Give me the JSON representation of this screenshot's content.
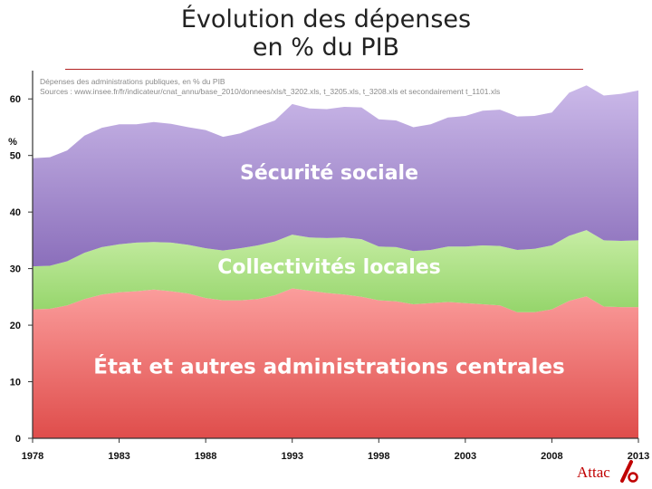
{
  "page": {
    "title_line1": "Évolution des dépenses",
    "title_line2": "en % du PIB",
    "logo_text": "Attac",
    "colors": {
      "title_rule": "#b22222",
      "logo": "#c00000"
    }
  },
  "chart_data": {
    "type": "area",
    "stacking": "cumulative",
    "note_line1": "Dépenses des administrations publiques, en % du PIB",
    "note_line2": "Sources : www.insee.fr/fr/indicateur/cnat_annu/base_2010/donnees/xls/t_3202.xls, t_3205.xls, t_3208.xls et secondairement t_1101.xls",
    "ylabel": "%",
    "ylim": [
      0,
      65
    ],
    "xlim": [
      1978,
      2013
    ],
    "x_ticks": [
      1978,
      1983,
      1988,
      1993,
      1998,
      2003,
      2008,
      2013
    ],
    "y_ticks": [
      0,
      10,
      20,
      30,
      40,
      50,
      60
    ],
    "x": [
      1978,
      1979,
      1980,
      1981,
      1982,
      1983,
      1984,
      1985,
      1986,
      1987,
      1988,
      1989,
      1990,
      1991,
      1992,
      1993,
      1994,
      1995,
      1996,
      1997,
      1998,
      1999,
      2000,
      2001,
      2002,
      2003,
      2004,
      2005,
      2006,
      2007,
      2008,
      2009,
      2010,
      2011,
      2012,
      2013
    ],
    "series": [
      {
        "name": "État et autres administrations centrales",
        "color_top": "#fb9d9c",
        "color_bottom": "#df4d4b",
        "values": [
          22.8,
          22.9,
          23.5,
          24.6,
          25.4,
          25.8,
          26.0,
          26.3,
          26.0,
          25.6,
          24.8,
          24.4,
          24.4,
          24.6,
          25.3,
          26.5,
          26.1,
          25.7,
          25.4,
          25.0,
          24.4,
          24.2,
          23.7,
          23.9,
          24.1,
          23.9,
          23.7,
          23.5,
          22.3,
          22.3,
          22.8,
          24.3,
          25.1,
          23.3,
          23.2,
          23.2
        ]
      },
      {
        "name": "Collectivités locales",
        "color_top": "#c7eda4",
        "color_bottom": "#95d56b",
        "values": [
          7.6,
          7.6,
          7.8,
          8.2,
          8.4,
          8.5,
          8.6,
          8.4,
          8.6,
          8.6,
          8.8,
          8.8,
          9.2,
          9.5,
          9.5,
          9.5,
          9.4,
          9.7,
          10.1,
          10.2,
          9.5,
          9.6,
          9.4,
          9.4,
          9.8,
          10.0,
          10.4,
          10.5,
          11.0,
          11.2,
          11.3,
          11.5,
          11.7,
          11.7,
          11.7,
          11.8
        ]
      },
      {
        "name": "Sécurité sociale",
        "color_top": "#cbb9e9",
        "color_bottom": "#8b6fbb",
        "values": [
          19.1,
          19.2,
          19.6,
          20.7,
          21.1,
          21.2,
          20.9,
          21.2,
          21.0,
          20.8,
          20.9,
          20.1,
          20.3,
          21.0,
          21.4,
          23.1,
          22.8,
          22.8,
          23.1,
          23.3,
          22.5,
          22.4,
          21.9,
          22.2,
          22.8,
          23.1,
          23.8,
          24.1,
          23.6,
          23.5,
          23.5,
          25.3,
          25.6,
          25.6,
          26.0,
          26.5
        ]
      }
    ]
  }
}
